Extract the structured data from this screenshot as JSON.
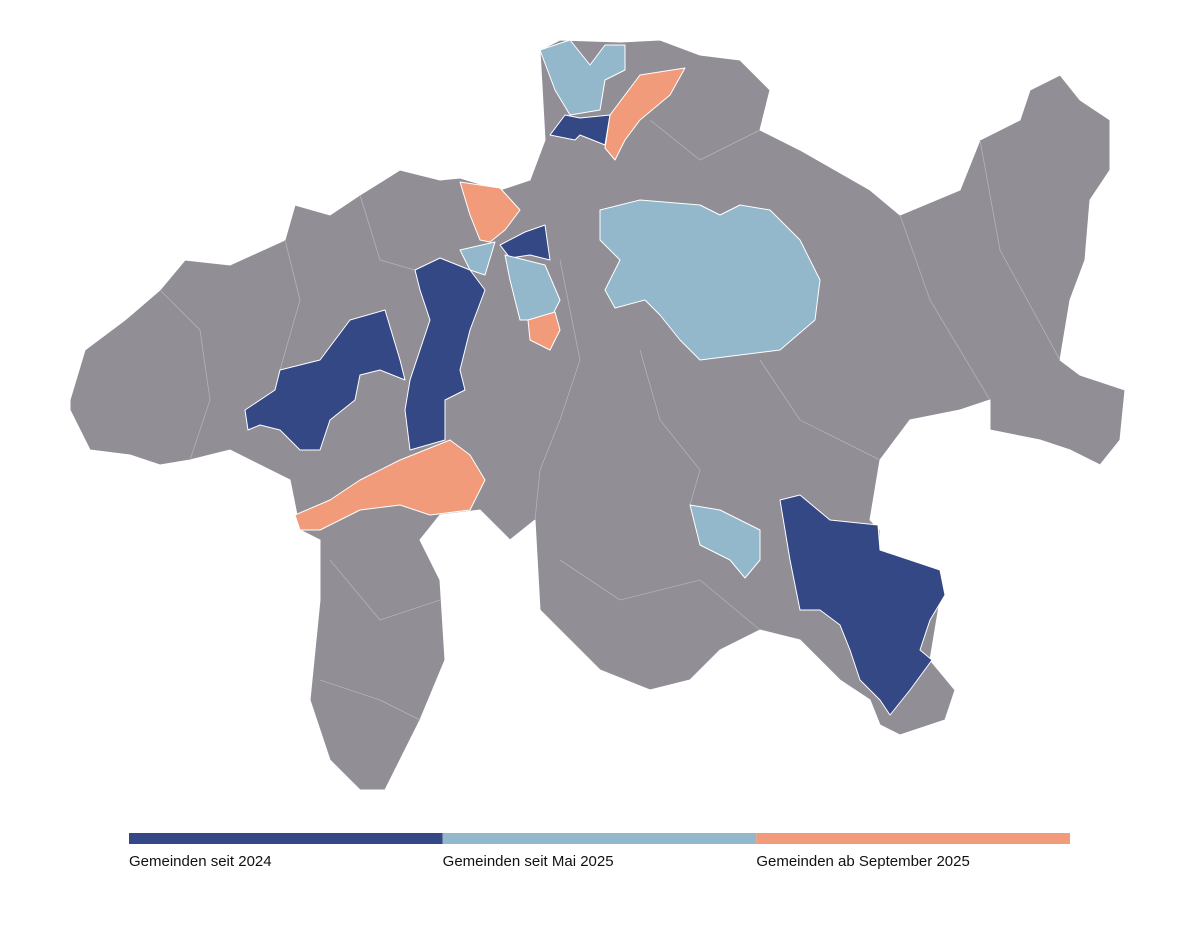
{
  "legend": {
    "items": [
      {
        "label": "Gemeinden seit 2024",
        "color": "#344886"
      },
      {
        "label": "Gemeinden seit Mai 2025",
        "color": "#93b7cb"
      },
      {
        "label": "Gemeinden ab September 2025",
        "color": "#f19b7a"
      }
    ]
  }
}
